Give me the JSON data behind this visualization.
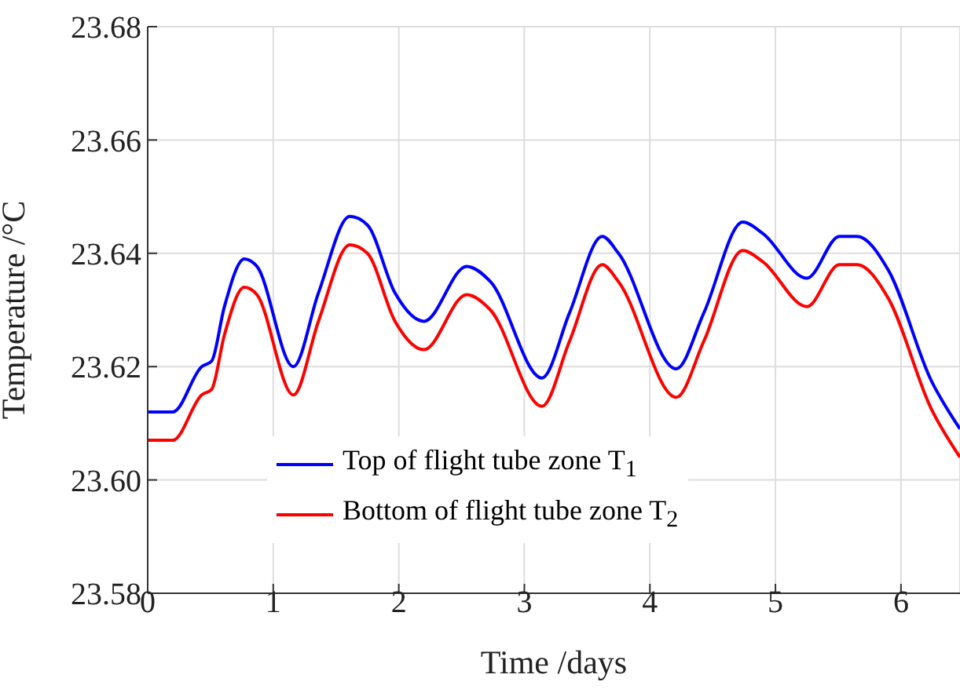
{
  "chart_data": {
    "type": "line",
    "xlabel": "Time /days",
    "ylabel": "Temperature /°C",
    "xlim": [
      0,
      6.47
    ],
    "xticks": [
      0,
      1,
      2,
      3,
      4,
      5,
      6
    ],
    "ylim": [
      23.58,
      23.68
    ],
    "yticks": [
      {
        "value": 23.58,
        "label": "23.58"
      },
      {
        "value": 23.6,
        "label": "23.60"
      },
      {
        "value": 23.62,
        "label": "23.62"
      },
      {
        "value": 23.64,
        "label": "23.64"
      },
      {
        "value": 23.66,
        "label": "23.66"
      },
      {
        "value": 23.68,
        "label": "23.68"
      }
    ],
    "grid": true,
    "legend": "bottom left",
    "line_style": "solid",
    "marker": "none",
    "x": [
      0,
      0.2,
      0.43,
      0.51,
      0.61,
      0.77,
      0.87,
      1.16,
      1.36,
      1.61,
      1.75,
      1.97,
      2.2,
      2.54,
      2.73,
      3.14,
      3.36,
      3.62,
      3.75,
      4.21,
      4.43,
      4.74,
      4.9,
      5.25,
      5.51,
      5.65,
      5.9,
      6.24,
      6.47
    ],
    "series": [
      {
        "name": "Top of flight tube zone T$_{1}$",
        "color": "#0000ff",
        "values": [
          23.612,
          23.612,
          23.62,
          23.621,
          23.6305,
          23.639,
          23.6377,
          23.62,
          23.633,
          23.6465,
          23.645,
          23.633,
          23.628,
          23.6377,
          23.635,
          23.618,
          23.6295,
          23.643,
          23.64,
          23.6196,
          23.6295,
          23.6455,
          23.6435,
          23.6356,
          23.643,
          23.643,
          23.637,
          23.6176,
          23.609
        ]
      },
      {
        "name": "Bottom of flight tube zone T$_{2}$",
        "color": "#ff0000",
        "values": [
          23.607,
          23.607,
          23.615,
          23.616,
          23.6255,
          23.634,
          23.6327,
          23.615,
          23.628,
          23.6415,
          23.64,
          23.628,
          23.623,
          23.6327,
          23.63,
          23.613,
          23.6245,
          23.638,
          23.635,
          23.6146,
          23.6245,
          23.6405,
          23.6385,
          23.6306,
          23.638,
          23.638,
          23.632,
          23.6126,
          23.604
        ]
      }
    ]
  }
}
